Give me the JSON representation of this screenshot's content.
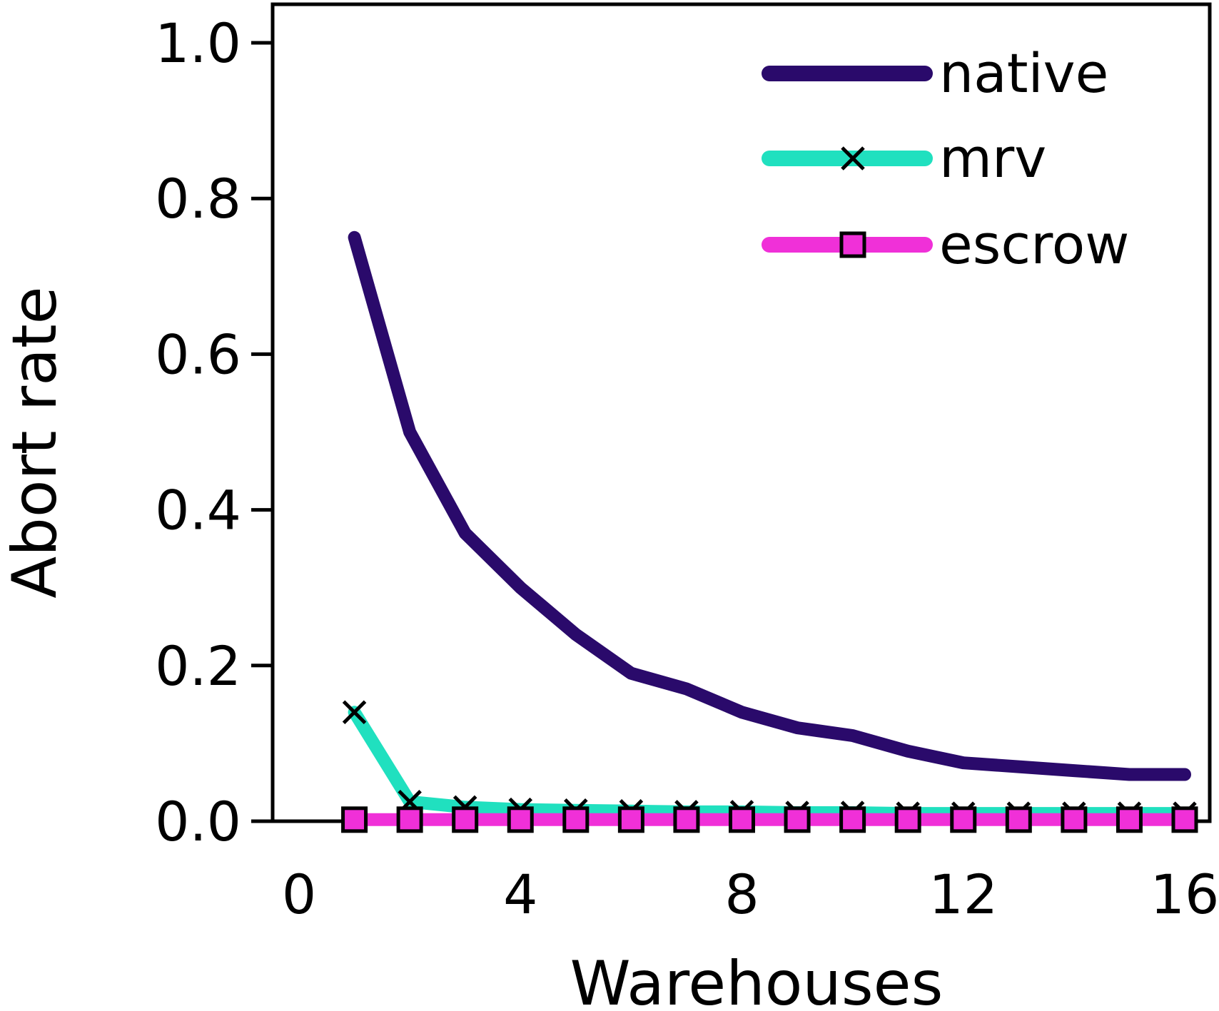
{
  "chart_data": {
    "type": "line",
    "title": "",
    "xlabel": "Warehouses",
    "ylabel": "Abort rate",
    "xlim": [
      0,
      16
    ],
    "ylim": [
      0,
      1.0
    ],
    "x_ticks": [
      "0",
      "4",
      "8",
      "12",
      "16"
    ],
    "y_ticks": [
      "0.0",
      "0.2",
      "0.4",
      "0.6",
      "0.8",
      "1.0"
    ],
    "grid": false,
    "legend_position": "top-right",
    "x": [
      1,
      2,
      3,
      4,
      5,
      6,
      7,
      8,
      9,
      10,
      11,
      12,
      13,
      14,
      15,
      16
    ],
    "series": [
      {
        "name": "native",
        "color": "#2a0a6b",
        "marker": "none",
        "values": [
          0.75,
          0.5,
          0.37,
          0.3,
          0.24,
          0.19,
          0.17,
          0.14,
          0.12,
          0.11,
          0.09,
          0.075,
          0.07,
          0.065,
          0.06,
          0.06
        ]
      },
      {
        "name": "mrv",
        "color": "#20e0bf",
        "marker": "x",
        "values": [
          0.14,
          0.025,
          0.018,
          0.015,
          0.014,
          0.013,
          0.012,
          0.012,
          0.011,
          0.011,
          0.01,
          0.01,
          0.01,
          0.01,
          0.01,
          0.01
        ]
      },
      {
        "name": "escrow",
        "color": "#f030d8",
        "marker": "square",
        "values": [
          0.002,
          0.002,
          0.002,
          0.002,
          0.002,
          0.002,
          0.002,
          0.002,
          0.002,
          0.002,
          0.002,
          0.002,
          0.002,
          0.002,
          0.002,
          0.002
        ]
      }
    ]
  }
}
